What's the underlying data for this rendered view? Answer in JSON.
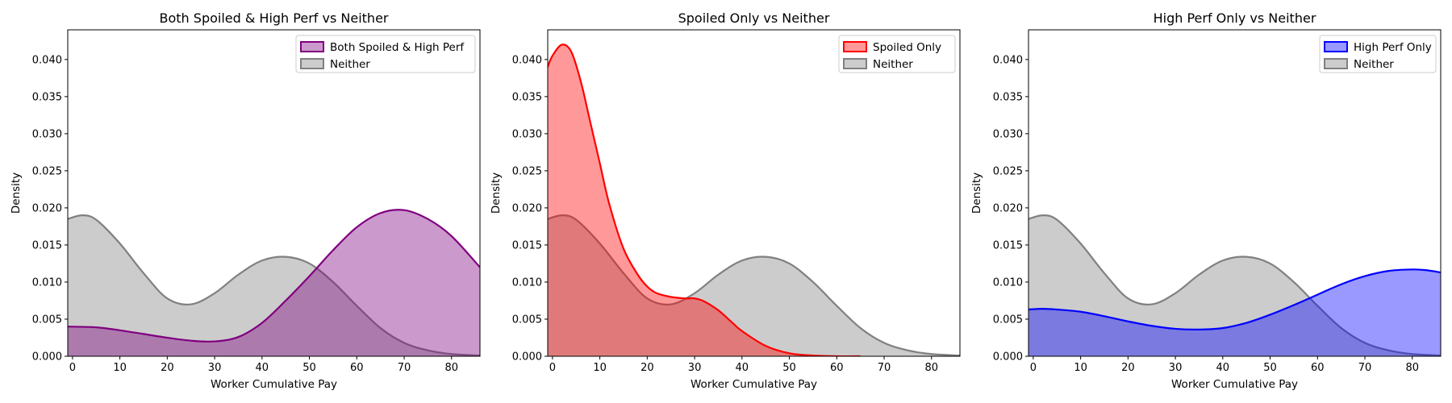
{
  "colors": {
    "neither": "#808080",
    "neither_fill": "#bfbfbf",
    "both": "#800080",
    "spoiled": "#ff0000",
    "highperf": "#0000ff"
  },
  "chart_data": [
    {
      "type": "area",
      "title": "Both Spoiled & High Perf vs Neither",
      "xlabel": "Worker Cumulative Pay",
      "ylabel": "Density",
      "xlim": [
        -1,
        86
      ],
      "ylim": [
        0,
        0.044
      ],
      "xticks": [
        0,
        10,
        20,
        30,
        40,
        50,
        60,
        70,
        80
      ],
      "yticks": [
        0.0,
        0.005,
        0.01,
        0.015,
        0.02,
        0.025,
        0.03,
        0.035,
        0.04
      ],
      "ytick_labels": [
        "0.000",
        "0.005",
        "0.010",
        "0.015",
        "0.020",
        "0.025",
        "0.030",
        "0.035",
        "0.040"
      ],
      "legend_position": "top-right",
      "series": [
        {
          "name": "Both Spoiled & High Perf",
          "color": "#800080",
          "x": [
            -1,
            5,
            10,
            15,
            20,
            25,
            30,
            35,
            40,
            45,
            50,
            55,
            60,
            65,
            70,
            75,
            80,
            86
          ],
          "y": [
            0.004,
            0.0039,
            0.0035,
            0.003,
            0.0025,
            0.0021,
            0.002,
            0.0026,
            0.0045,
            0.0075,
            0.0108,
            0.0143,
            0.0174,
            0.0193,
            0.0197,
            0.0185,
            0.0162,
            0.012
          ]
        },
        {
          "name": "Neither",
          "color": "#808080",
          "x": [
            -1,
            2,
            5,
            10,
            15,
            20,
            25,
            30,
            35,
            40,
            45,
            50,
            55,
            60,
            65,
            70,
            75,
            80,
            86
          ],
          "y": [
            0.0185,
            0.019,
            0.0184,
            0.0152,
            0.0112,
            0.0078,
            0.007,
            0.0085,
            0.011,
            0.0129,
            0.0134,
            0.0125,
            0.01,
            0.0068,
            0.0038,
            0.0018,
            0.0008,
            0.0003,
            0.0001
          ]
        }
      ]
    },
    {
      "type": "area",
      "title": "Spoiled Only vs Neither",
      "xlabel": "Worker Cumulative Pay",
      "ylabel": "Density",
      "xlim": [
        -1,
        86
      ],
      "ylim": [
        0,
        0.044
      ],
      "xticks": [
        0,
        10,
        20,
        30,
        40,
        50,
        60,
        70,
        80
      ],
      "yticks": [
        0.0,
        0.005,
        0.01,
        0.015,
        0.02,
        0.025,
        0.03,
        0.035,
        0.04
      ],
      "ytick_labels": [
        "0.000",
        "0.005",
        "0.010",
        "0.015",
        "0.020",
        "0.025",
        "0.030",
        "0.035",
        "0.040"
      ],
      "legend_position": "top-right",
      "series": [
        {
          "name": "Spoiled Only",
          "color": "#ff0000",
          "x": [
            -1,
            0,
            2,
            4,
            6,
            8,
            10,
            12,
            15,
            18,
            20,
            22,
            25,
            28,
            30,
            32,
            35,
            38,
            40,
            45,
            50,
            55,
            60,
            65
          ],
          "y": [
            0.039,
            0.0405,
            0.042,
            0.041,
            0.037,
            0.0315,
            0.026,
            0.0205,
            0.0145,
            0.011,
            0.0094,
            0.0085,
            0.008,
            0.0078,
            0.0078,
            0.0074,
            0.0062,
            0.0045,
            0.0034,
            0.0014,
            0.0004,
            0.0001,
            0.0,
            0.0
          ]
        },
        {
          "name": "Neither",
          "color": "#808080",
          "x": [
            -1,
            2,
            5,
            10,
            15,
            20,
            25,
            30,
            35,
            40,
            45,
            50,
            55,
            60,
            65,
            70,
            75,
            80,
            86
          ],
          "y": [
            0.0185,
            0.019,
            0.0184,
            0.0152,
            0.0112,
            0.0078,
            0.007,
            0.0085,
            0.011,
            0.0129,
            0.0134,
            0.0125,
            0.01,
            0.0068,
            0.0038,
            0.0018,
            0.0008,
            0.0003,
            0.0001
          ]
        }
      ]
    },
    {
      "type": "area",
      "title": "High Perf Only vs Neither",
      "xlabel": "Worker Cumulative Pay",
      "ylabel": "Density",
      "xlim": [
        -1,
        86
      ],
      "ylim": [
        0,
        0.044
      ],
      "xticks": [
        0,
        10,
        20,
        30,
        40,
        50,
        60,
        70,
        80
      ],
      "yticks": [
        0.0,
        0.005,
        0.01,
        0.015,
        0.02,
        0.025,
        0.03,
        0.035,
        0.04
      ],
      "ytick_labels": [
        "0.000",
        "0.005",
        "0.010",
        "0.015",
        "0.020",
        "0.025",
        "0.030",
        "0.035",
        "0.040"
      ],
      "legend_position": "top-right",
      "series": [
        {
          "name": "High Perf Only",
          "color": "#0000ff",
          "x": [
            -1,
            2,
            5,
            10,
            15,
            20,
            25,
            30,
            35,
            40,
            45,
            50,
            55,
            60,
            65,
            70,
            75,
            80,
            83,
            86
          ],
          "y": [
            0.0063,
            0.0064,
            0.0063,
            0.006,
            0.0054,
            0.0047,
            0.0041,
            0.0037,
            0.0036,
            0.0038,
            0.0045,
            0.0056,
            0.0069,
            0.0083,
            0.0097,
            0.0108,
            0.0115,
            0.0117,
            0.0116,
            0.0113
          ]
        },
        {
          "name": "Neither",
          "color": "#808080",
          "x": [
            -1,
            2,
            5,
            10,
            15,
            20,
            25,
            30,
            35,
            40,
            45,
            50,
            55,
            60,
            65,
            70,
            75,
            80,
            86
          ],
          "y": [
            0.0185,
            0.019,
            0.0184,
            0.0152,
            0.0112,
            0.0078,
            0.007,
            0.0085,
            0.011,
            0.0129,
            0.0134,
            0.0125,
            0.01,
            0.0068,
            0.0038,
            0.0018,
            0.0008,
            0.0003,
            0.0001
          ]
        }
      ]
    }
  ]
}
